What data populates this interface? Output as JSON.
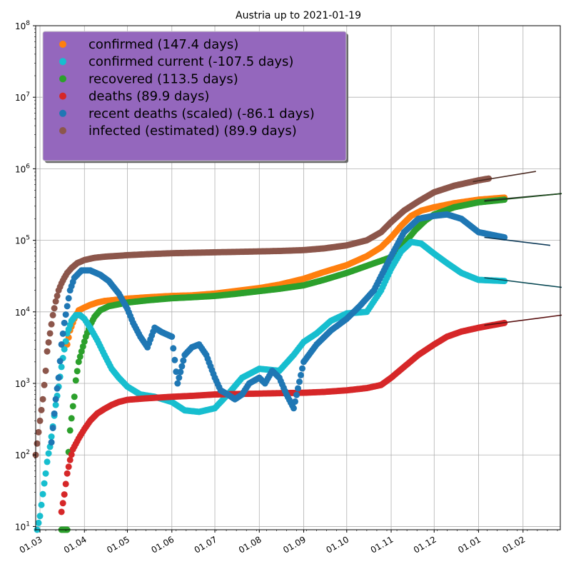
{
  "chart_data": {
    "type": "scatter",
    "title": "Austria up to 2021-01-19",
    "xlabel": "",
    "ylabel": "",
    "y_scale": "log",
    "ylim": [
      9,
      100000000
    ],
    "xlim": [
      "2020-02-27",
      "2021-02-27"
    ],
    "grid": true,
    "legend_position": "top-left",
    "legend_background": "#9467bd",
    "x_ticks": [
      {
        "date": "2020-03-01",
        "label": "01.03"
      },
      {
        "date": "2020-04-01",
        "label": "01.04"
      },
      {
        "date": "2020-05-01",
        "label": "01.05"
      },
      {
        "date": "2020-06-01",
        "label": "01.06"
      },
      {
        "date": "2020-07-01",
        "label": "01.07"
      },
      {
        "date": "2020-08-01",
        "label": "01.08"
      },
      {
        "date": "2020-09-01",
        "label": "01.09"
      },
      {
        "date": "2020-10-01",
        "label": "01.10"
      },
      {
        "date": "2020-11-01",
        "label": "01.11"
      },
      {
        "date": "2020-12-01",
        "label": "01.12"
      },
      {
        "date": "2021-01-01",
        "label": "01.01"
      },
      {
        "date": "2021-02-01",
        "label": "01.02"
      }
    ],
    "y_ticks": [
      {
        "value": 10,
        "base": "10",
        "exp": "1"
      },
      {
        "value": 100,
        "base": "10",
        "exp": "2"
      },
      {
        "value": 1000,
        "base": "10",
        "exp": "3"
      },
      {
        "value": 10000,
        "base": "10",
        "exp": "4"
      },
      {
        "value": 100000,
        "base": "10",
        "exp": "5"
      },
      {
        "value": 1000000,
        "base": "10",
        "exp": "6"
      },
      {
        "value": 10000000,
        "base": "10",
        "exp": "7"
      },
      {
        "value": 100000000,
        "base": "10",
        "exp": "8"
      }
    ],
    "series": [
      {
        "name": "infected (estimated) (89.9 days)",
        "color": "#8c564b",
        "trend_color": "#4a2a22",
        "points": [
          [
            "2020-02-27",
            100
          ],
          [
            "2020-03-01",
            300
          ],
          [
            "2020-03-03",
            600
          ],
          [
            "2020-03-05",
            1500
          ],
          [
            "2020-03-06",
            2800
          ],
          [
            "2020-03-08",
            5000
          ],
          [
            "2020-03-10",
            9000
          ],
          [
            "2020-03-12",
            14000
          ],
          [
            "2020-03-14",
            20000
          ],
          [
            "2020-03-16",
            25000
          ],
          [
            "2020-03-18",
            30000
          ],
          [
            "2020-03-20",
            35000
          ],
          [
            "2020-03-23",
            41000
          ],
          [
            "2020-03-27",
            48000
          ],
          [
            "2020-04-01",
            53000
          ],
          [
            "2020-04-08",
            57000
          ],
          [
            "2020-04-15",
            59000
          ],
          [
            "2020-05-01",
            62000
          ],
          [
            "2020-05-15",
            64000
          ],
          [
            "2020-06-01",
            66000
          ],
          [
            "2020-07-01",
            68000
          ],
          [
            "2020-08-01",
            70000
          ],
          [
            "2020-08-15",
            71000
          ],
          [
            "2020-09-01",
            73000
          ],
          [
            "2020-09-15",
            77000
          ],
          [
            "2020-10-01",
            85000
          ],
          [
            "2020-10-15",
            100000
          ],
          [
            "2020-10-25",
            130000
          ],
          [
            "2020-11-01",
            180000
          ],
          [
            "2020-11-10",
            260000
          ],
          [
            "2020-11-20",
            350000
          ],
          [
            "2020-12-01",
            470000
          ],
          [
            "2020-12-15",
            580000
          ],
          [
            "2021-01-01",
            690000
          ],
          [
            "2021-01-08",
            730000
          ]
        ],
        "trend": [
          [
            "2020-12-28",
            660000
          ],
          [
            "2021-02-10",
            920000
          ]
        ]
      },
      {
        "name": "confirmed (147.4 days)",
        "color": "#ff7f0e",
        "trend_color": "#2d2d2d",
        "points": [
          [
            "2020-03-20",
            3500
          ],
          [
            "2020-03-22",
            5500
          ],
          [
            "2020-03-25",
            8000
          ],
          [
            "2020-03-28",
            10500
          ],
          [
            "2020-04-01",
            11500
          ],
          [
            "2020-04-05",
            12500
          ],
          [
            "2020-04-10",
            13500
          ],
          [
            "2020-04-15",
            14200
          ],
          [
            "2020-05-01",
            15300
          ],
          [
            "2020-05-15",
            16000
          ],
          [
            "2020-06-01",
            16700
          ],
          [
            "2020-06-15",
            17000
          ],
          [
            "2020-07-01",
            18000
          ],
          [
            "2020-07-15",
            19500
          ],
          [
            "2020-08-01",
            21500
          ],
          [
            "2020-08-15",
            24000
          ],
          [
            "2020-09-01",
            29000
          ],
          [
            "2020-09-15",
            36000
          ],
          [
            "2020-10-01",
            45000
          ],
          [
            "2020-10-15",
            60000
          ],
          [
            "2020-10-25",
            80000
          ],
          [
            "2020-11-01",
            110000
          ],
          [
            "2020-11-08",
            160000
          ],
          [
            "2020-11-15",
            220000
          ],
          [
            "2020-11-22",
            260000
          ],
          [
            "2020-12-01",
            290000
          ],
          [
            "2020-12-15",
            330000
          ],
          [
            "2021-01-01",
            370000
          ],
          [
            "2021-01-19",
            395000
          ]
        ],
        "trend": [
          [
            "2021-01-05",
            360000
          ],
          [
            "2021-02-28",
            450000
          ]
        ]
      },
      {
        "name": "recovered (113.5 days)",
        "color": "#2ca02c",
        "trend_color": "#1a4a1a",
        "points": [
          [
            "2020-03-16",
            9
          ],
          [
            "2020-03-20",
            9
          ],
          [
            "2020-03-21",
            110
          ],
          [
            "2020-03-22",
            220
          ],
          [
            "2020-03-24",
            480
          ],
          [
            "2020-03-25",
            650
          ],
          [
            "2020-03-26",
            1100
          ],
          [
            "2020-03-28",
            2000
          ],
          [
            "2020-03-30",
            2800
          ],
          [
            "2020-04-02",
            4500
          ],
          [
            "2020-04-05",
            6500
          ],
          [
            "2020-04-08",
            8500
          ],
          [
            "2020-04-12",
            10500
          ],
          [
            "2020-04-18",
            12000
          ],
          [
            "2020-05-01",
            13500
          ],
          [
            "2020-05-15",
            14500
          ],
          [
            "2020-06-01",
            15500
          ],
          [
            "2020-06-15",
            16000
          ],
          [
            "2020-07-01",
            16700
          ],
          [
            "2020-07-15",
            17800
          ],
          [
            "2020-08-01",
            19500
          ],
          [
            "2020-08-15",
            21000
          ],
          [
            "2020-09-01",
            23500
          ],
          [
            "2020-09-15",
            28000
          ],
          [
            "2020-10-01",
            35000
          ],
          [
            "2020-10-15",
            44000
          ],
          [
            "2020-11-01",
            58000
          ],
          [
            "2020-11-10",
            90000
          ],
          [
            "2020-11-18",
            140000
          ],
          [
            "2020-11-25",
            190000
          ],
          [
            "2020-12-01",
            230000
          ],
          [
            "2020-12-15",
            290000
          ],
          [
            "2021-01-01",
            340000
          ],
          [
            "2021-01-19",
            370000
          ]
        ],
        "trend": [
          [
            "2021-01-05",
            350000
          ],
          [
            "2021-02-28",
            450000
          ]
        ]
      },
      {
        "name": "confirmed current (-107.5 days)",
        "color": "#17becf",
        "trend_color": "#0b4a55",
        "points": [
          [
            "2020-02-28",
            9
          ],
          [
            "2020-03-01",
            14
          ],
          [
            "2020-03-02",
            20
          ],
          [
            "2020-03-04",
            40
          ],
          [
            "2020-03-05",
            55
          ],
          [
            "2020-03-06",
            80
          ],
          [
            "2020-03-07",
            105
          ],
          [
            "2020-03-08",
            130
          ],
          [
            "2020-03-10",
            250
          ],
          [
            "2020-03-12",
            500
          ],
          [
            "2020-03-14",
            900
          ],
          [
            "2020-03-16",
            1700
          ],
          [
            "2020-03-18",
            3000
          ],
          [
            "2020-03-20",
            5000
          ],
          [
            "2020-03-23",
            7500
          ],
          [
            "2020-03-26",
            9000
          ],
          [
            "2020-03-29",
            9000
          ],
          [
            "2020-04-01",
            8000
          ],
          [
            "2020-04-05",
            6000
          ],
          [
            "2020-04-10",
            4000
          ],
          [
            "2020-04-15",
            2500
          ],
          [
            "2020-04-20",
            1600
          ],
          [
            "2020-04-25",
            1200
          ],
          [
            "2020-05-01",
            900
          ],
          [
            "2020-05-10",
            700
          ],
          [
            "2020-05-20",
            650
          ],
          [
            "2020-06-01",
            550
          ],
          [
            "2020-06-10",
            420
          ],
          [
            "2020-06-20",
            400
          ],
          [
            "2020-07-01",
            450
          ],
          [
            "2020-07-10",
            700
          ],
          [
            "2020-07-20",
            1200
          ],
          [
            "2020-08-01",
            1600
          ],
          [
            "2020-08-15",
            1500
          ],
          [
            "2020-08-25",
            2500
          ],
          [
            "2020-09-01",
            3800
          ],
          [
            "2020-09-10",
            5000
          ],
          [
            "2020-09-20",
            7500
          ],
          [
            "2020-10-01",
            9500
          ],
          [
            "2020-10-15",
            10000
          ],
          [
            "2020-10-25",
            20000
          ],
          [
            "2020-11-01",
            40000
          ],
          [
            "2020-11-08",
            70000
          ],
          [
            "2020-11-15",
            95000
          ],
          [
            "2020-11-22",
            90000
          ],
          [
            "2020-12-01",
            65000
          ],
          [
            "2020-12-10",
            48000
          ],
          [
            "2020-12-20",
            35000
          ],
          [
            "2021-01-01",
            28000
          ],
          [
            "2021-01-19",
            27000
          ]
        ],
        "trend": [
          [
            "2021-01-05",
            30000
          ],
          [
            "2021-02-28",
            22000
          ]
        ]
      },
      {
        "name": "deaths (89.9 days)",
        "color": "#d62728",
        "trend_color": "#5a1212",
        "points": [
          [
            "2020-03-16",
            16
          ],
          [
            "2020-03-18",
            28
          ],
          [
            "2020-03-20",
            55
          ],
          [
            "2020-03-22",
            85
          ],
          [
            "2020-03-24",
            120
          ],
          [
            "2020-03-28",
            170
          ],
          [
            "2020-04-01",
            230
          ],
          [
            "2020-04-05",
            300
          ],
          [
            "2020-04-10",
            380
          ],
          [
            "2020-04-15",
            440
          ],
          [
            "2020-04-20",
            500
          ],
          [
            "2020-04-25",
            550
          ],
          [
            "2020-05-01",
            590
          ],
          [
            "2020-05-15",
            620
          ],
          [
            "2020-06-01",
            650
          ],
          [
            "2020-06-15",
            670
          ],
          [
            "2020-07-01",
            700
          ],
          [
            "2020-07-15",
            710
          ],
          [
            "2020-08-01",
            720
          ],
          [
            "2020-08-15",
            730
          ],
          [
            "2020-09-01",
            740
          ],
          [
            "2020-09-15",
            760
          ],
          [
            "2020-10-01",
            800
          ],
          [
            "2020-10-15",
            860
          ],
          [
            "2020-10-25",
            950
          ],
          [
            "2020-11-01",
            1200
          ],
          [
            "2020-11-10",
            1700
          ],
          [
            "2020-11-20",
            2500
          ],
          [
            "2020-12-01",
            3500
          ],
          [
            "2020-12-10",
            4500
          ],
          [
            "2020-12-20",
            5300
          ],
          [
            "2021-01-01",
            6000
          ],
          [
            "2021-01-19",
            7000
          ]
        ],
        "trend": [
          [
            "2021-01-05",
            6500
          ],
          [
            "2021-02-28",
            9000
          ]
        ]
      },
      {
        "name": "recent deaths (scaled) (-86.1 days)",
        "color": "#1f77b4",
        "trend_color": "#0e3a58",
        "points": [
          [
            "2020-03-09",
            150
          ],
          [
            "2020-03-12",
            600
          ],
          [
            "2020-03-14",
            1200
          ],
          [
            "2020-03-16",
            3500
          ],
          [
            "2020-03-18",
            7000
          ],
          [
            "2020-03-20",
            12000
          ],
          [
            "2020-03-22",
            20000
          ],
          [
            "2020-03-25",
            30000
          ],
          [
            "2020-03-30",
            38000
          ],
          [
            "2020-04-05",
            38000
          ],
          [
            "2020-04-12",
            33000
          ],
          [
            "2020-04-18",
            27000
          ],
          [
            "2020-04-25",
            18000
          ],
          [
            "2020-05-01",
            11000
          ],
          [
            "2020-05-05",
            7000
          ],
          [
            "2020-05-10",
            4500
          ],
          [
            "2020-05-15",
            3200
          ],
          [
            "2020-05-20",
            6000
          ],
          [
            "2020-05-25",
            5200
          ],
          [
            "2020-06-01",
            4500
          ],
          [
            "2020-06-05",
            1000
          ],
          [
            "2020-06-10",
            2500
          ],
          [
            "2020-06-15",
            3200
          ],
          [
            "2020-06-20",
            3500
          ],
          [
            "2020-06-25",
            2500
          ],
          [
            "2020-07-01",
            1200
          ],
          [
            "2020-07-05",
            800
          ],
          [
            "2020-07-10",
            700
          ],
          [
            "2020-07-15",
            600
          ],
          [
            "2020-07-20",
            700
          ],
          [
            "2020-07-25",
            1000
          ],
          [
            "2020-08-01",
            1200
          ],
          [
            "2020-08-05",
            1000
          ],
          [
            "2020-08-10",
            1500
          ],
          [
            "2020-08-15",
            1200
          ],
          [
            "2020-08-20",
            700
          ],
          [
            "2020-08-25",
            450
          ],
          [
            "2020-09-01",
            2000
          ],
          [
            "2020-09-10",
            3500
          ],
          [
            "2020-09-20",
            5500
          ],
          [
            "2020-10-01",
            8000
          ],
          [
            "2020-10-10",
            12000
          ],
          [
            "2020-10-20",
            20000
          ],
          [
            "2020-11-01",
            60000
          ],
          [
            "2020-11-10",
            130000
          ],
          [
            "2020-11-20",
            200000
          ],
          [
            "2020-12-01",
            220000
          ],
          [
            "2020-12-10",
            230000
          ],
          [
            "2020-12-20",
            200000
          ],
          [
            "2021-01-01",
            130000
          ],
          [
            "2021-01-19",
            110000
          ]
        ],
        "trend": [
          [
            "2021-01-05",
            110000
          ],
          [
            "2021-02-20",
            85000
          ]
        ]
      }
    ]
  }
}
